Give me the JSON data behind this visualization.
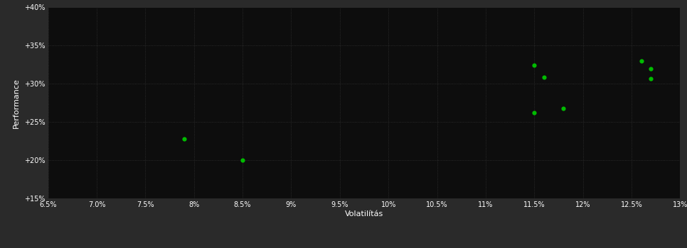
{
  "xlabel": "Volatilítás",
  "ylabel": "Performance",
  "outer_bg_color": "#2a2a2a",
  "plot_bg_color": "#0d0d0d",
  "grid_color": "#333333",
  "dot_color": "#00bb00",
  "dot_size": 20,
  "xlim": [
    0.065,
    0.13
  ],
  "ylim": [
    0.15,
    0.4
  ],
  "xticks": [
    0.065,
    0.07,
    0.075,
    0.08,
    0.085,
    0.09,
    0.095,
    0.1,
    0.105,
    0.11,
    0.115,
    0.12,
    0.125,
    0.13
  ],
  "yticks": [
    0.15,
    0.2,
    0.25,
    0.3,
    0.35,
    0.4
  ],
  "points": [
    [
      0.079,
      0.228
    ],
    [
      0.085,
      0.2
    ],
    [
      0.115,
      0.262
    ],
    [
      0.118,
      0.268
    ],
    [
      0.115,
      0.324
    ],
    [
      0.116,
      0.309
    ],
    [
      0.126,
      0.33
    ],
    [
      0.127,
      0.32
    ],
    [
      0.127,
      0.307
    ]
  ],
  "tick_color": "#ffffff",
  "tick_fontsize": 7,
  "label_fontsize": 8
}
